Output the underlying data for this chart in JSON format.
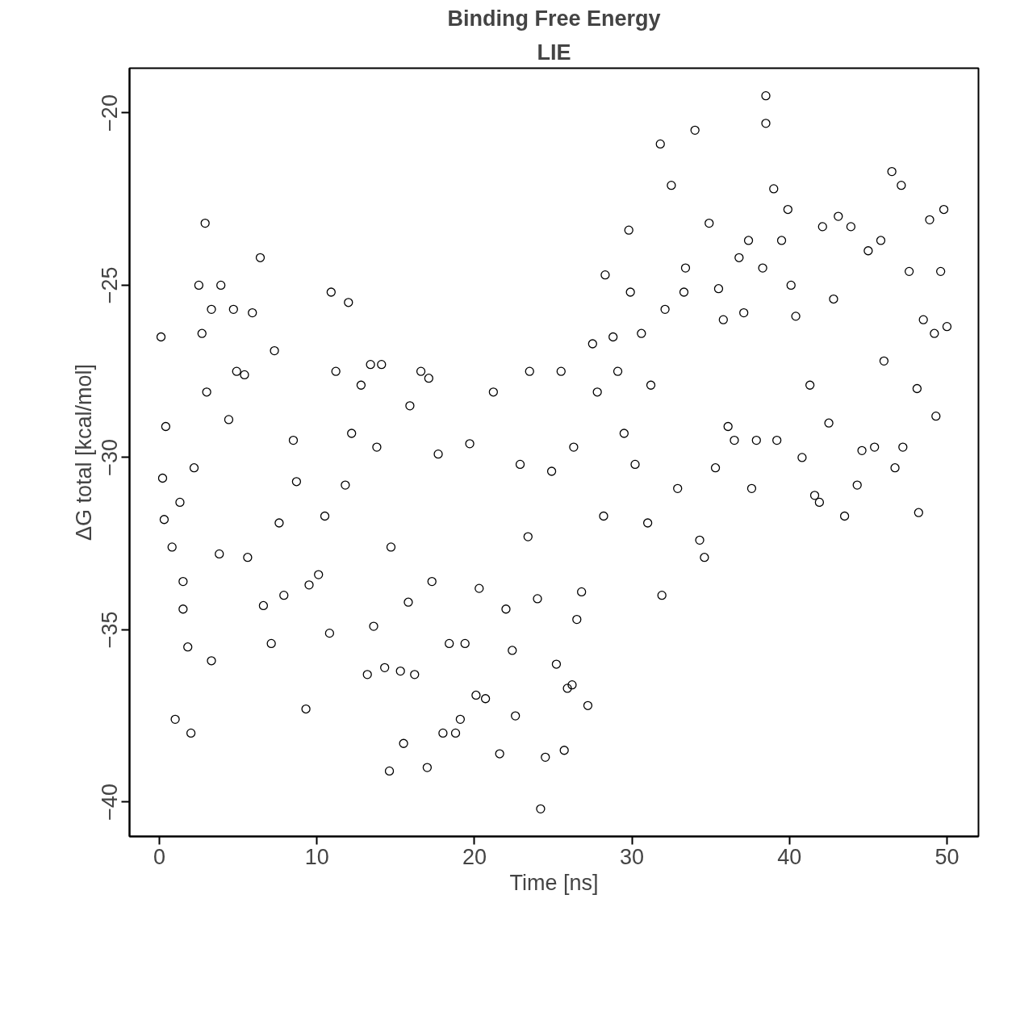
{
  "chart_data": {
    "type": "scatter",
    "title": "Binding Free Energy",
    "subtitle": "LIE",
    "xlabel": "Time [ns]",
    "ylabel": "ΔG total [kcal/mol]",
    "x": [
      0.1,
      0.2,
      0.3,
      0.4,
      0.8,
      1.0,
      1.3,
      1.5,
      1.5,
      1.8,
      2.0,
      2.2,
      2.5,
      2.7,
      2.9,
      3.0,
      3.3,
      3.3,
      3.8,
      3.9,
      4.4,
      4.7,
      4.9,
      5.4,
      5.6,
      5.9,
      6.4,
      6.6,
      7.1,
      7.3,
      7.6,
      7.9,
      8.5,
      8.7,
      9.3,
      9.5,
      10.1,
      10.5,
      10.8,
      10.9,
      11.2,
      12.0,
      11.8,
      12.2,
      12.8,
      13.2,
      13.4,
      13.6,
      13.8,
      14.1,
      14.3,
      14.6,
      14.7,
      15.3,
      15.5,
      15.8,
      15.9,
      16.2,
      16.6,
      17.0,
      17.1,
      17.3,
      17.7,
      18.0,
      18.4,
      18.8,
      19.1,
      19.4,
      19.7,
      20.1,
      20.3,
      20.7,
      21.2,
      21.6,
      22.0,
      22.4,
      22.6,
      22.9,
      23.4,
      23.5,
      24.0,
      24.2,
      24.5,
      24.9,
      25.2,
      25.5,
      25.7,
      25.9,
      26.2,
      26.3,
      26.5,
      26.8,
      27.2,
      27.5,
      27.8,
      28.2,
      28.3,
      28.8,
      29.1,
      29.5,
      29.8,
      29.9,
      30.2,
      30.6,
      31.0,
      31.2,
      31.8,
      31.9,
      32.1,
      32.5,
      32.9,
      33.3,
      33.4,
      34.0,
      34.3,
      34.6,
      34.9,
      35.3,
      35.5,
      35.8,
      36.1,
      36.5,
      36.8,
      37.1,
      37.4,
      37.6,
      37.9,
      38.3,
      38.5,
      38.5,
      39.0,
      39.2,
      39.5,
      39.9,
      40.1,
      40.4,
      40.8,
      41.3,
      41.6,
      41.9,
      42.1,
      42.5,
      42.8,
      43.1,
      43.5,
      43.9,
      44.3,
      44.6,
      45.0,
      45.4,
      45.8,
      46.0,
      46.5,
      46.7,
      47.1,
      47.2,
      47.6,
      48.1,
      48.2,
      48.5,
      48.9,
      49.2,
      49.3,
      49.6,
      49.8,
      50.0
    ],
    "values": [
      -26.5,
      -30.6,
      -31.8,
      -29.1,
      -32.6,
      -37.6,
      -31.3,
      -34.4,
      -33.6,
      -35.5,
      -38.0,
      -30.3,
      -25.0,
      -26.4,
      -23.2,
      -28.1,
      -25.7,
      -35.9,
      -32.8,
      -25.0,
      -28.9,
      -25.7,
      -27.5,
      -27.6,
      -32.9,
      -25.8,
      -24.2,
      -34.3,
      -35.4,
      -26.9,
      -31.9,
      -34.0,
      -29.5,
      -30.7,
      -37.3,
      -33.7,
      -33.4,
      -31.7,
      -35.1,
      -25.2,
      -27.5,
      -25.5,
      -30.8,
      -29.3,
      -27.9,
      -36.3,
      -27.3,
      -34.9,
      -29.7,
      -27.3,
      -36.1,
      -39.1,
      -32.6,
      -36.2,
      -38.3,
      -34.2,
      -28.5,
      -36.3,
      -27.5,
      -39.0,
      -27.7,
      -33.6,
      -29.9,
      -38.0,
      -35.4,
      -38.0,
      -37.6,
      -35.4,
      -29.6,
      -36.9,
      -33.8,
      -37.0,
      -28.1,
      -38.6,
      -34.4,
      -35.6,
      -37.5,
      -30.2,
      -32.3,
      -27.5,
      -34.1,
      -40.2,
      -38.7,
      -30.4,
      -36.0,
      -27.5,
      -38.5,
      -36.7,
      -36.6,
      -29.7,
      -34.7,
      -33.9,
      -37.2,
      -26.7,
      -28.1,
      -31.7,
      -24.7,
      -26.5,
      -27.5,
      -29.3,
      -23.4,
      -25.2,
      -30.2,
      -26.4,
      -31.9,
      -27.9,
      -20.9,
      -34.0,
      -25.7,
      -22.1,
      -30.9,
      -25.2,
      -24.5,
      -20.5,
      -32.4,
      -32.9,
      -23.2,
      -30.3,
      -25.1,
      -26.0,
      -29.1,
      -29.5,
      -24.2,
      -25.8,
      -23.7,
      -30.9,
      -29.5,
      -24.5,
      -19.5,
      -20.3,
      -22.2,
      -29.5,
      -23.7,
      -22.8,
      -25.0,
      -25.9,
      -30.0,
      -27.9,
      -31.1,
      -31.3,
      -23.3,
      -29.0,
      -25.4,
      -23.0,
      -31.7,
      -23.3,
      -30.8,
      -29.8,
      -24.0,
      -29.7,
      -23.7,
      -27.2,
      -21.7,
      -30.3,
      -22.1,
      -29.7,
      -24.6,
      -28.0,
      -31.6,
      -26.0,
      -23.1,
      -26.4,
      -28.8,
      -24.6,
      -22.8,
      -26.2
    ],
    "color": "#000000",
    "marker": "circle",
    "grid": false,
    "xlim": [
      -1.9,
      52.0
    ],
    "ylim": [
      -41.0,
      -18.7
    ],
    "xticks": [
      0,
      10,
      20,
      30,
      40,
      50
    ],
    "yticks": [
      -40,
      -35,
      -30,
      -25,
      -20
    ]
  }
}
